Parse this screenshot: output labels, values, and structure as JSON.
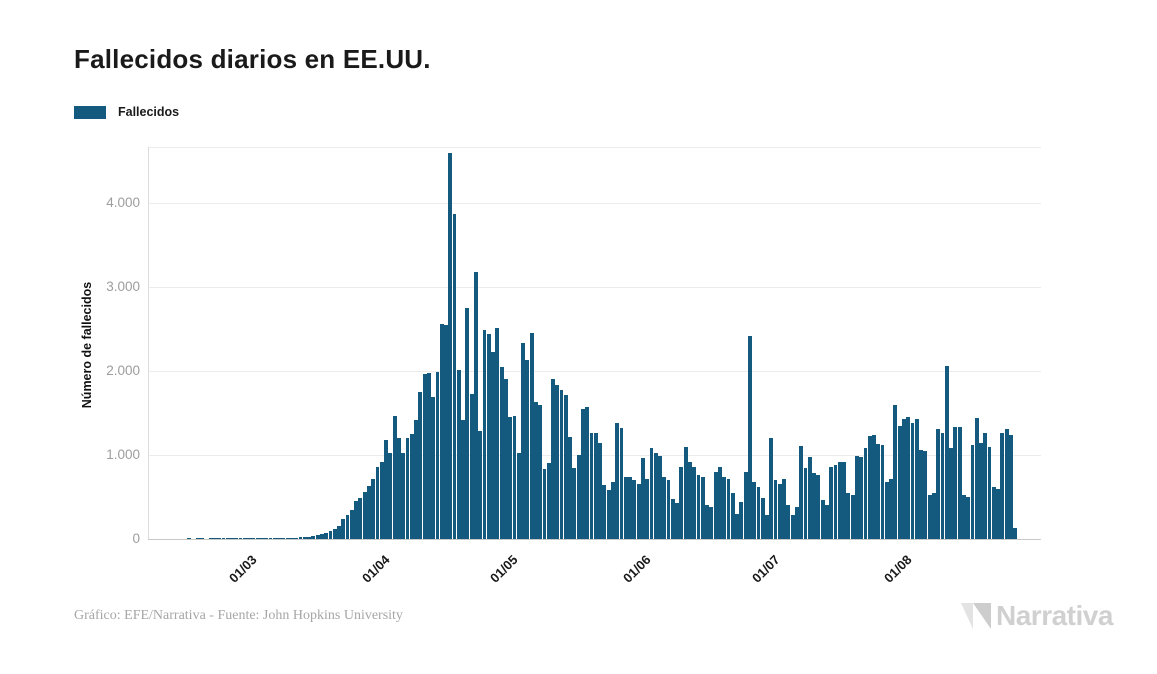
{
  "page": {
    "title": "Fallecidos diarios en EE.UU.",
    "legend_label": "Fallecidos",
    "footer_credit": "Gráfico: EFE/Narrativa - Fuente: John Hopkins University",
    "brand_name": "Narrativa"
  },
  "colors": {
    "bar": "#14597e",
    "grid": "#ececec",
    "axis_line": "#c9c9c9",
    "y_tick_text": "#9d9d9d",
    "x_tick_text": "#191919",
    "title_text": "#1a1a1a",
    "footer_text": "#a6a6a6",
    "brand_gray": "#d0d0d0",
    "brand_light": "#e3e3e3"
  },
  "chart_data": {
    "type": "bar",
    "title": "Fallecidos diarios en EE.UU.",
    "series_name": "Fallecidos",
    "xlabel": "",
    "ylabel": "Número de fallecidos",
    "ylim": [
      0,
      4667
    ],
    "grid": true,
    "legend_position": "top-left",
    "y_ticks": [
      {
        "value": 0,
        "label": "0"
      },
      {
        "value": 1000,
        "label": "1.000"
      },
      {
        "value": 2000,
        "label": "2.000"
      },
      {
        "value": 3000,
        "label": "3.000"
      },
      {
        "value": 4000,
        "label": "4.000"
      }
    ],
    "x_ticks": [
      {
        "day_index": 15,
        "label": "01/03"
      },
      {
        "day_index": 46,
        "label": "01/04"
      },
      {
        "day_index": 76,
        "label": "01/05"
      },
      {
        "day_index": 107,
        "label": "01/06"
      },
      {
        "day_index": 137,
        "label": "01/07"
      },
      {
        "day_index": 168,
        "label": "01/08"
      }
    ],
    "x_range_estimate": [
      "15/02/2020",
      "27/08/2020"
    ],
    "values": [
      0,
      1,
      0,
      1,
      1,
      0,
      1,
      1,
      1,
      2,
      1,
      2,
      3,
      2,
      3,
      4,
      3,
      5,
      4,
      6,
      5,
      7,
      6,
      8,
      10,
      12,
      15,
      18,
      22,
      28,
      35,
      45,
      60,
      75,
      95,
      120,
      150,
      237,
      285,
      344,
      455,
      494,
      562,
      633,
      714,
      861,
      920,
      1178,
      1020,
      1464,
      1198,
      1020,
      1198,
      1246,
      1417,
      1754,
      1960,
      1980,
      1694,
      1992,
      2560,
      2550,
      4590,
      3870,
      2010,
      1420,
      2750,
      1730,
      3180,
      1290,
      2490,
      2440,
      2230,
      2508,
      2051,
      1900,
      1456,
      1464,
      1028,
      2337,
      2131,
      2456,
      1635,
      1595,
      829,
      901,
      1900,
      1833,
      1774,
      1714,
      1218,
      841,
      1000,
      1544,
      1567,
      1258,
      1266,
      1139,
      643,
      583,
      683,
      1377,
      1317,
      742,
      740,
      700,
      660,
      960,
      710,
      1080,
      1020,
      990,
      740,
      700,
      480,
      430,
      860,
      1090,
      920,
      860,
      760,
      740,
      405,
      385,
      800,
      860,
      740,
      720,
      545,
      300,
      445,
      800,
      2420,
      680,
      620,
      485,
      285,
      1198,
      702,
      655,
      710,
      405,
      286,
      385,
      1107,
      841,
      980,
      782,
      762,
      464,
      405,
      853,
      885,
      920,
      920,
      544,
      524,
      988,
      980,
      1079,
      1226,
      1238,
      1131,
      1119,
      683,
      710,
      1595,
      1345,
      1425,
      1448,
      1377,
      1425,
      1060,
      1048,
      524,
      552,
      1305,
      1258,
      2059,
      1079,
      1337,
      1329,
      524,
      504,
      1119,
      1436,
      1139,
      1258,
      1091,
      623,
      595,
      1258,
      1305,
      1238,
      127
    ]
  }
}
